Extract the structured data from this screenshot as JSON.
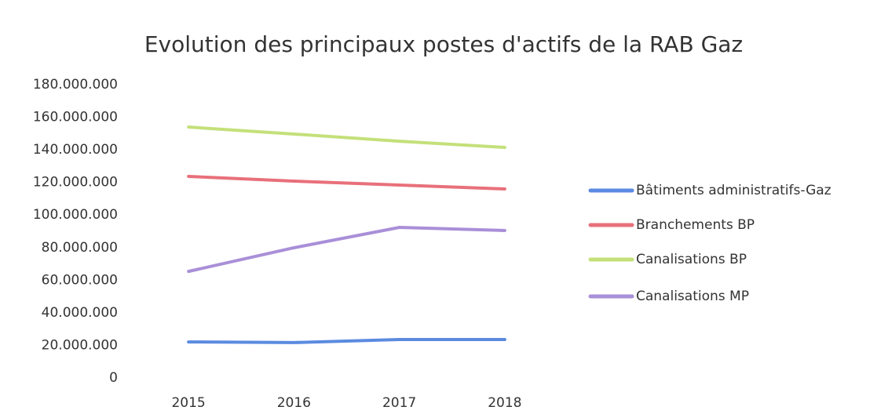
{
  "chart_data": {
    "type": "line",
    "title": "Evolution des principaux postes d'actifs de la RAB Gaz",
    "categories": [
      "2015",
      "2016",
      "2017",
      "2018"
    ],
    "series": [
      {
        "name": "Bâtiments administratifs-Gaz",
        "color": "#5b8be0",
        "values": [
          22100000,
          21700000,
          23600000,
          23600000
        ]
      },
      {
        "name": "Branchements BP",
        "color": "#e8707a",
        "values": [
          123700000,
          120800000,
          118400000,
          116000000
        ]
      },
      {
        "name": "Canalisations BP",
        "color": "#c4e07a",
        "values": [
          154000000,
          149700000,
          145300000,
          141500000
        ]
      },
      {
        "name": "Canalisations MP",
        "color": "#a98fd8",
        "values": [
          65400000,
          79900000,
          92400000,
          90500000
        ]
      }
    ],
    "ylim": [
      0,
      180000000
    ],
    "yticks": [
      0,
      {
        "value": 20000000,
        "label": "20.000.000"
      },
      {
        "value": 40000000,
        "label": "40.000.000"
      },
      {
        "value": 60000000,
        "label": "60.000.000"
      },
      {
        "value": 80000000,
        "label": "80.000.000"
      },
      {
        "value": 100000000,
        "label": "100.000.000"
      },
      {
        "value": 120000000,
        "label": "120.000.000"
      },
      {
        "value": 140000000,
        "label": "140.000.000"
      },
      {
        "value": 160000000,
        "label": "160.000.000"
      },
      {
        "value": 180000000,
        "label": "180.000.000"
      }
    ],
    "grid": false,
    "legend": "right"
  }
}
